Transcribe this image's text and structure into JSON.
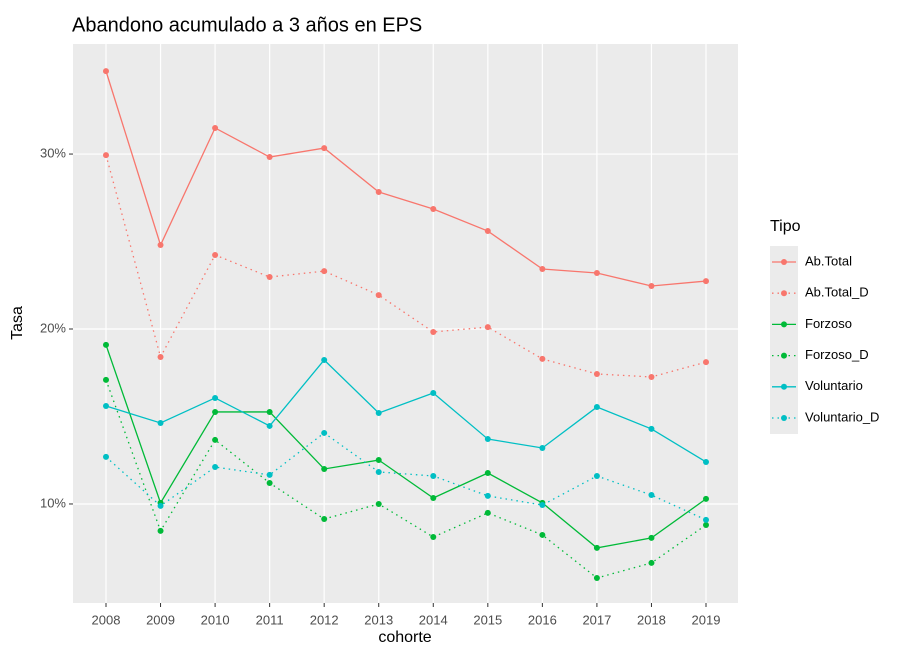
{
  "chart_data": {
    "type": "line",
    "title": "Abandono acumulado a  3  años en EPS",
    "x_label": "cohorte",
    "y_label": "Tasa",
    "legend_title": "Tipo",
    "categories": [
      "2008",
      "2009",
      "2010",
      "2011",
      "2012",
      "2013",
      "2014",
      "2015",
      "2016",
      "2017",
      "2018",
      "2019"
    ],
    "series": [
      {
        "name": "Ab.Total",
        "color": "#F8766D",
        "linetype": "solid",
        "values": [
          34.74,
          24.8,
          31.49,
          29.83,
          30.34,
          27.83,
          26.86,
          25.6,
          23.43,
          23.2,
          22.46,
          22.74
        ]
      },
      {
        "name": "Ab.Total_D",
        "color": "#F8766D",
        "linetype": "dotted",
        "values": [
          29.94,
          18.4,
          24.23,
          22.97,
          23.31,
          21.94,
          19.83,
          20.11,
          18.29,
          17.43,
          17.26,
          18.11
        ]
      },
      {
        "name": "Forzoso",
        "color": "#00BA38",
        "linetype": "solid",
        "values": [
          19.09,
          10.06,
          15.26,
          15.26,
          12.0,
          12.51,
          10.34,
          11.77,
          10.06,
          7.49,
          8.06,
          10.29
        ]
      },
      {
        "name": "Forzoso_D",
        "color": "#00BA38",
        "linetype": "dotted",
        "values": [
          17.09,
          8.46,
          13.66,
          11.2,
          9.14,
          10.0,
          8.11,
          9.49,
          8.23,
          5.77,
          6.63,
          8.8
        ]
      },
      {
        "name": "Voluntario",
        "color": "#00BFC4",
        "linetype": "solid",
        "values": [
          15.6,
          14.63,
          16.06,
          14.46,
          18.23,
          15.2,
          16.34,
          13.71,
          13.2,
          15.54,
          14.29,
          12.4
        ]
      },
      {
        "name": "Voluntario_D",
        "color": "#00BFC4",
        "linetype": "dotted",
        "values": [
          12.69,
          9.89,
          12.11,
          11.66,
          14.06,
          11.83,
          11.6,
          10.46,
          9.94,
          11.6,
          10.51,
          9.09
        ]
      }
    ],
    "ylim": [
      4.34,
      36.29
    ],
    "yticks": [
      {
        "value": 10,
        "label": "10%"
      },
      {
        "value": 20,
        "label": "20%"
      },
      {
        "value": 30,
        "label": "30%"
      }
    ],
    "grid": true,
    "legend": "right"
  }
}
